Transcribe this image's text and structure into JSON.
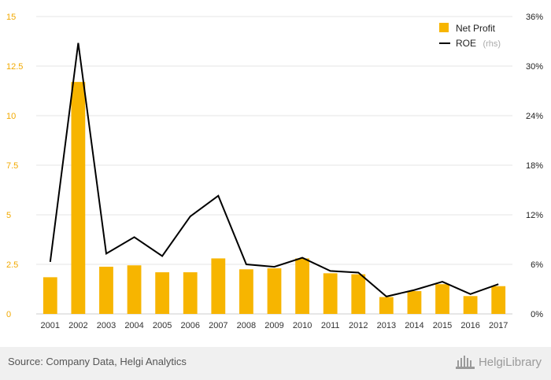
{
  "chart_data": {
    "type": "bar",
    "categories": [
      "2001",
      "2002",
      "2003",
      "2004",
      "2005",
      "2006",
      "2007",
      "2008",
      "2009",
      "2010",
      "2011",
      "2012",
      "2013",
      "2014",
      "2015",
      "2016",
      "2017"
    ],
    "series": [
      {
        "name": "Net Profit",
        "type": "bar",
        "axis": "left",
        "color": "#f7b500",
        "values": [
          1.85,
          11.7,
          2.38,
          2.45,
          2.1,
          2.1,
          2.8,
          2.25,
          2.3,
          2.8,
          2.05,
          2.0,
          0.85,
          1.15,
          1.5,
          0.9,
          1.4
        ]
      },
      {
        "name": "ROE",
        "note": "(rhs)",
        "type": "line",
        "axis": "right",
        "color": "#000000",
        "values": [
          6.3,
          32.8,
          7.3,
          9.3,
          7.0,
          11.8,
          14.3,
          6.0,
          5.7,
          6.8,
          5.2,
          5.0,
          2.1,
          2.9,
          3.9,
          2.4,
          3.6
        ]
      }
    ],
    "y_left": {
      "min": 0,
      "max": 15,
      "ticks": [
        0,
        2.5,
        5,
        7.5,
        10,
        12.5,
        15
      ],
      "tick_labels": [
        "0",
        "2.5",
        "5",
        "7.5",
        "10",
        "12.5",
        "15"
      ]
    },
    "y_right": {
      "min": 0,
      "max": 36,
      "ticks": [
        0,
        6,
        12,
        18,
        24,
        30,
        36
      ],
      "tick_labels": [
        "0%",
        "6%",
        "12%",
        "18%",
        "24%",
        "30%",
        "36%"
      ]
    },
    "grid": true,
    "legend_position": "top-right"
  },
  "footer": {
    "source": "Source: Company Data, Helgi Analytics",
    "logo_text": "HelgiLibrary",
    "logo_icon": "library-building-icon"
  }
}
